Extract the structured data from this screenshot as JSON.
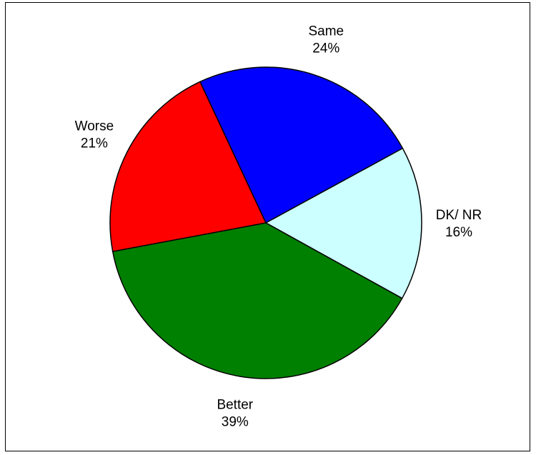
{
  "chart_data": {
    "type": "pie",
    "title": "",
    "start_angle_deg": -115,
    "direction": "clockwise",
    "legend": "none",
    "slices": [
      {
        "label": "Same",
        "value": 24,
        "percent_label": "24%",
        "color": "#0000ff"
      },
      {
        "label": "DK/ NR",
        "value": 16,
        "percent_label": "16%",
        "color": "#ccffff"
      },
      {
        "label": "Better",
        "value": 39,
        "percent_label": "39%",
        "color": "#008000"
      },
      {
        "label": "Worse",
        "value": 21,
        "percent_label": "21%",
        "color": "#ff0000"
      }
    ]
  }
}
